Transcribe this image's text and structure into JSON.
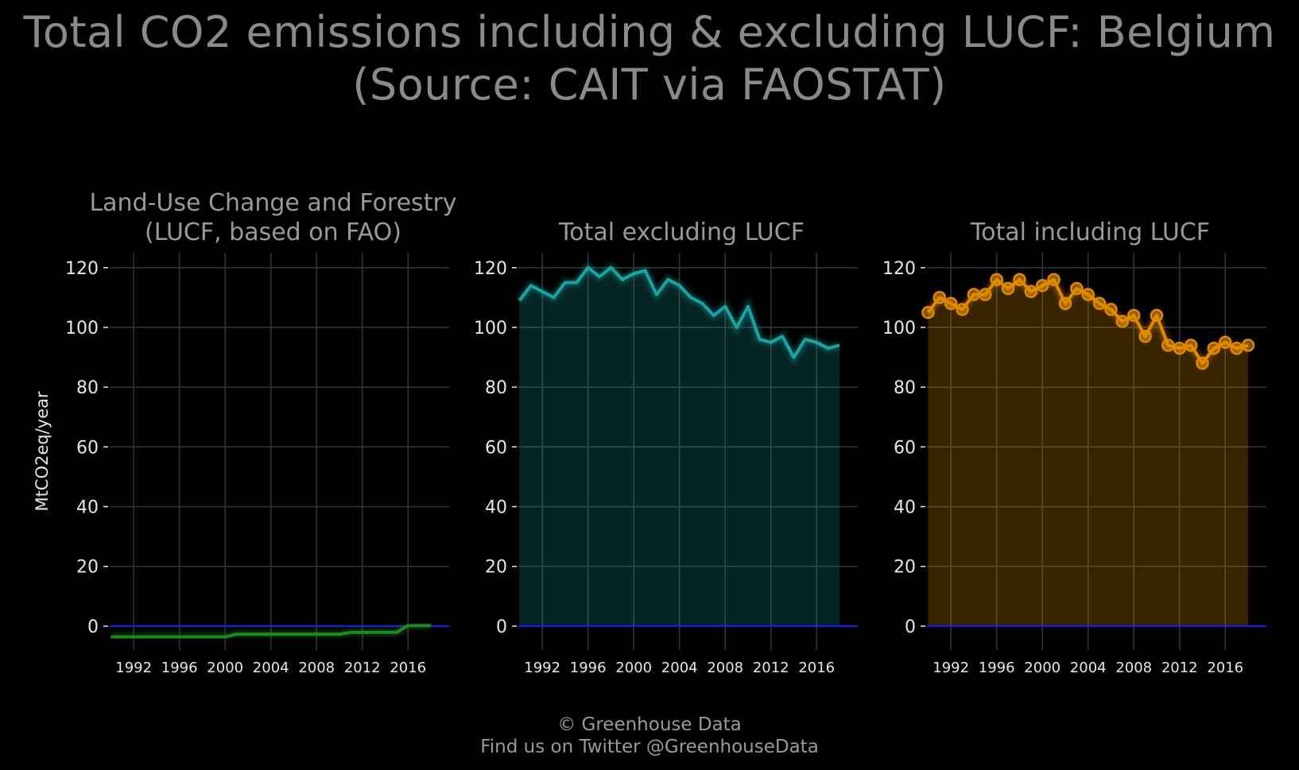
{
  "header": {
    "title_line1": "Total CO2 emissions including & excluding LUCF: Belgium",
    "title_line2": "(Source: CAIT via FAOSTAT)"
  },
  "footer": {
    "line1": "© Greenhouse Data",
    "line2": "Find us on Twitter @GreenhouseData"
  },
  "colors": {
    "background": "#000000",
    "title": "#8a8a8a",
    "axis_text": "#e6e6e6",
    "grid": "#333333",
    "zero_line": "#1a1aff",
    "lucf": "#1f8a1f",
    "excl": "#1aa3a3",
    "incl": "#e08a00"
  },
  "chart_data": [
    {
      "type": "area",
      "title_line1": "Land-Use Change and Forestry",
      "title_line2": "(LUCF, based on FAO)",
      "ylabel": "MtCO2eq/year",
      "xlabel": "",
      "ylim": [
        -8,
        125
      ],
      "yticks": [
        0,
        20,
        40,
        60,
        80,
        100,
        120
      ],
      "xticks": [
        1992,
        1996,
        2000,
        2004,
        2008,
        2012,
        2016
      ],
      "grid": true,
      "color": "#1f8a1f",
      "x": [
        1990,
        1991,
        1992,
        1993,
        1994,
        1995,
        1996,
        1997,
        1998,
        1999,
        2000,
        2001,
        2002,
        2003,
        2004,
        2005,
        2006,
        2007,
        2008,
        2009,
        2010,
        2011,
        2012,
        2013,
        2014,
        2015,
        2016,
        2017,
        2018
      ],
      "values": [
        -3.6,
        -3.6,
        -3.6,
        -3.6,
        -3.6,
        -3.6,
        -3.6,
        -3.6,
        -3.6,
        -3.6,
        -3.6,
        -2.7,
        -2.7,
        -2.7,
        -2.7,
        -2.7,
        -2.7,
        -2.7,
        -2.7,
        -2.7,
        -2.7,
        -2.1,
        -2.1,
        -2.1,
        -2.1,
        -2.1,
        0.2,
        0.2,
        0.2
      ]
    },
    {
      "type": "area",
      "title_line1": "",
      "title_line2": "Total excluding LUCF",
      "ylabel": "",
      "xlabel": "",
      "ylim": [
        -8,
        125
      ],
      "yticks": [
        0,
        20,
        40,
        60,
        80,
        100,
        120
      ],
      "xticks": [
        1992,
        1996,
        2000,
        2004,
        2008,
        2012,
        2016
      ],
      "grid": true,
      "color": "#1aa3a3",
      "x": [
        1990,
        1991,
        1992,
        1993,
        1994,
        1995,
        1996,
        1997,
        1998,
        1999,
        2000,
        2001,
        2002,
        2003,
        2004,
        2005,
        2006,
        2007,
        2008,
        2009,
        2010,
        2011,
        2012,
        2013,
        2014,
        2015,
        2016,
        2017,
        2018
      ],
      "values": [
        109,
        114,
        112,
        110,
        115,
        115,
        120,
        117,
        120,
        116,
        118,
        119,
        111,
        116,
        114,
        110,
        108,
        104,
        107,
        100,
        107,
        96,
        95,
        97,
        90,
        96,
        95,
        93,
        94
      ]
    },
    {
      "type": "line",
      "title_line1": "",
      "title_line2": "Total including LUCF",
      "ylabel": "",
      "xlabel": "",
      "ylim": [
        -8,
        125
      ],
      "yticks": [
        0,
        20,
        40,
        60,
        80,
        100,
        120
      ],
      "xticks": [
        1992,
        1996,
        2000,
        2004,
        2008,
        2012,
        2016
      ],
      "grid": true,
      "color": "#e08a00",
      "x": [
        1990,
        1991,
        1992,
        1993,
        1994,
        1995,
        1996,
        1997,
        1998,
        1999,
        2000,
        2001,
        2002,
        2003,
        2004,
        2005,
        2006,
        2007,
        2008,
        2009,
        2010,
        2011,
        2012,
        2013,
        2014,
        2015,
        2016,
        2017,
        2018
      ],
      "values": [
        105,
        110,
        108,
        106,
        111,
        111,
        116,
        113,
        116,
        112,
        114,
        116,
        108,
        113,
        111,
        108,
        106,
        102,
        104,
        97,
        104,
        94,
        93,
        94,
        88,
        93,
        95,
        93,
        94
      ]
    }
  ]
}
